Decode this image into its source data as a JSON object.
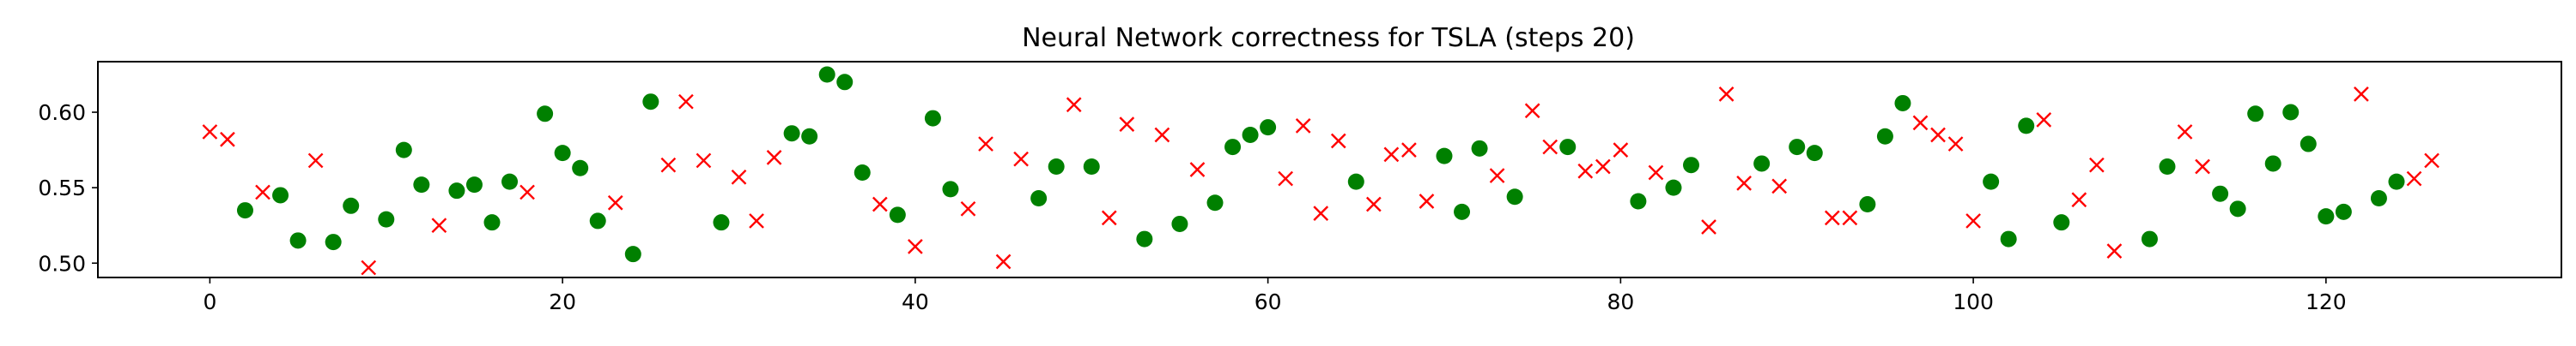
{
  "chart_data": {
    "type": "scatter",
    "title": "Neural Network correctness for TSLA (steps 20)",
    "xlabel": "",
    "ylabel": "",
    "xlim": [
      -6.35,
      133.35
    ],
    "ylim": [
      0.4905,
      0.6335
    ],
    "x_ticks": [
      0,
      20,
      40,
      60,
      80,
      100,
      120
    ],
    "y_ticks": [
      0.5,
      0.55,
      0.6
    ],
    "y_tick_labels": [
      "0.50",
      "0.55",
      "0.60"
    ],
    "grid": false,
    "legend": "none",
    "colors": {
      "correct": "#008000",
      "incorrect": "#ff0000"
    },
    "series": [
      {
        "marker": "circle",
        "color": "#008000",
        "x": [
          2,
          4,
          5,
          7,
          8,
          10,
          11,
          12,
          14,
          15,
          16,
          17,
          19,
          20,
          21,
          22,
          24,
          25,
          29,
          33,
          34,
          35,
          36,
          37,
          39,
          41,
          42,
          47,
          48,
          50,
          53,
          55,
          57,
          58,
          59,
          60,
          65,
          70,
          71,
          72,
          74,
          77,
          81,
          83,
          84,
          88,
          90,
          91,
          94,
          95,
          96,
          101,
          102,
          103,
          105,
          110,
          111,
          114,
          115,
          116,
          117,
          118,
          119,
          120,
          121,
          123,
          124
        ],
        "y": [
          0.535,
          0.545,
          0.515,
          0.514,
          0.538,
          0.529,
          0.575,
          0.552,
          0.548,
          0.552,
          0.527,
          0.554,
          0.599,
          0.573,
          0.563,
          0.528,
          0.506,
          0.607,
          0.527,
          0.586,
          0.584,
          0.625,
          0.62,
          0.56,
          0.532,
          0.596,
          0.549,
          0.543,
          0.564,
          0.564,
          0.516,
          0.526,
          0.54,
          0.577,
          0.585,
          0.59,
          0.554,
          0.571,
          0.534,
          0.576,
          0.544,
          0.577,
          0.541,
          0.55,
          0.565,
          0.566,
          0.577,
          0.573,
          0.539,
          0.584,
          0.606,
          0.554,
          0.516,
          0.591,
          0.527,
          0.516,
          0.564,
          0.546,
          0.536,
          0.599,
          0.566,
          0.6,
          0.579,
          0.531,
          0.534,
          0.543,
          0.554
        ]
      },
      {
        "marker": "x",
        "color": "#ff0000",
        "x": [
          0,
          1,
          3,
          6,
          9,
          13,
          18,
          23,
          26,
          27,
          28,
          30,
          31,
          32,
          38,
          40,
          43,
          44,
          45,
          46,
          49,
          51,
          52,
          54,
          56,
          61,
          62,
          63,
          64,
          66,
          67,
          68,
          69,
          73,
          75,
          76,
          78,
          79,
          80,
          82,
          85,
          86,
          87,
          89,
          92,
          93,
          97,
          98,
          99,
          100,
          104,
          106,
          107,
          108,
          112,
          113,
          122,
          125,
          126
        ],
        "y": [
          0.587,
          0.582,
          0.547,
          0.568,
          0.497,
          0.525,
          0.547,
          0.54,
          0.565,
          0.607,
          0.568,
          0.557,
          0.528,
          0.57,
          0.539,
          0.511,
          0.536,
          0.579,
          0.501,
          0.569,
          0.605,
          0.53,
          0.592,
          0.585,
          0.562,
          0.556,
          0.591,
          0.533,
          0.581,
          0.539,
          0.572,
          0.575,
          0.541,
          0.558,
          0.601,
          0.577,
          0.561,
          0.564,
          0.575,
          0.56,
          0.524,
          0.612,
          0.553,
          0.551,
          0.53,
          0.53,
          0.593,
          0.585,
          0.579,
          0.528,
          0.595,
          0.542,
          0.565,
          0.508,
          0.587,
          0.564,
          0.612,
          0.556,
          0.568
        ]
      }
    ]
  }
}
